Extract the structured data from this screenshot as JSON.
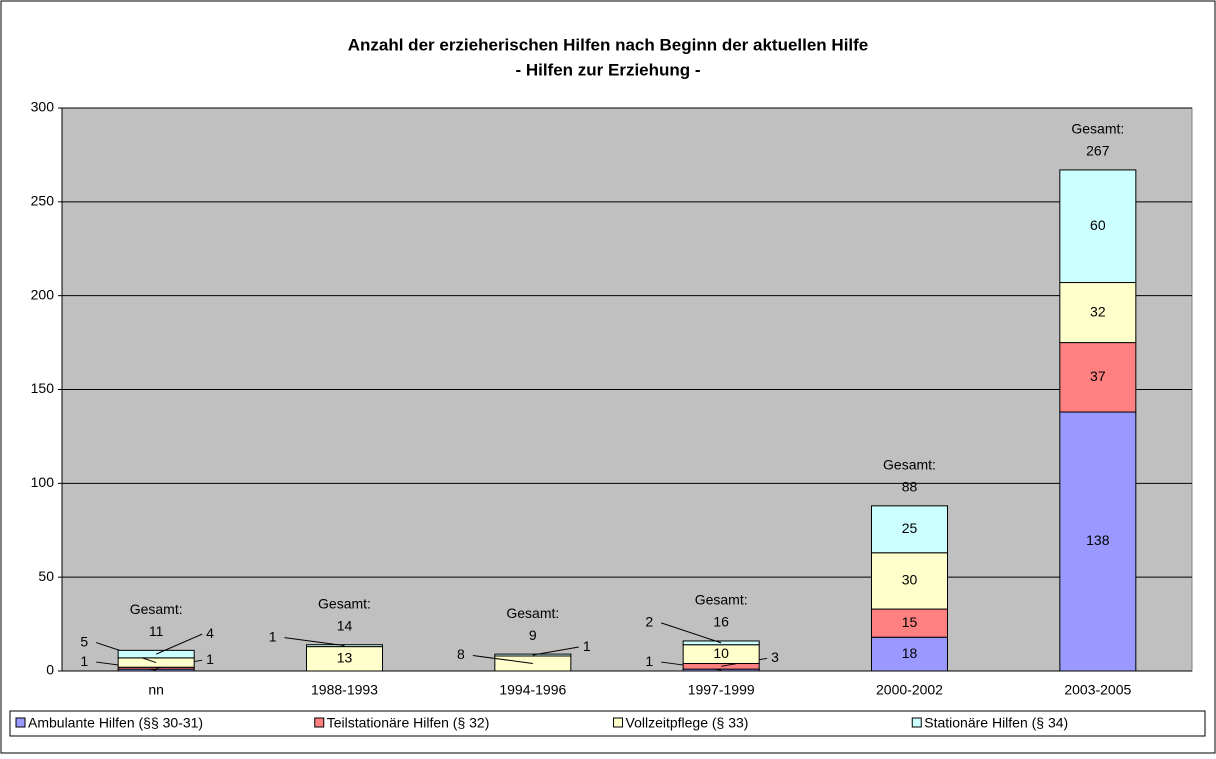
{
  "chart_data": {
    "type": "stacked-bar",
    "title": "Anzahl der erzieherischen Hilfen nach Beginn der aktuellen Hilfe",
    "subtitle": "- Hilfen zur Erziehung -",
    "categories": [
      "nn",
      "1988-1993",
      "1994-1996",
      "1997-1999",
      "2000-2002",
      "2003-2005"
    ],
    "series": [
      {
        "name": "Ambulante Hilfen (§§ 30-31)",
        "color": "#9999ff",
        "values": [
          1,
          null,
          null,
          1,
          18,
          138
        ]
      },
      {
        "name": "Teilstationäre Hilfen (§ 32)",
        "color": "#ff8080",
        "values": [
          1,
          null,
          null,
          3,
          15,
          37
        ]
      },
      {
        "name": "Vollzeitpflege (§ 33)",
        "color": "#ffffcc",
        "values": [
          5,
          13,
          8,
          10,
          30,
          32
        ]
      },
      {
        "name": "Stationäre Hilfen (§ 34)",
        "color": "#ccffff",
        "values": [
          4,
          1,
          1,
          2,
          25,
          60
        ]
      }
    ],
    "total_label": "Gesamt:",
    "totals": [
      11,
      14,
      9,
      16,
      88,
      267
    ],
    "ylim": [
      0,
      300
    ],
    "yticks": [
      0,
      50,
      100,
      150,
      200,
      250,
      300
    ],
    "grid": true,
    "plot_color": "#c0c0c0",
    "legend": "bottom"
  }
}
